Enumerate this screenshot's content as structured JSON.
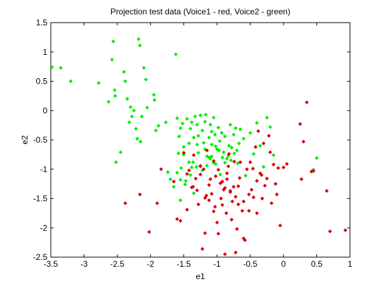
{
  "chart_data": {
    "type": "scatter",
    "title": "Projection test data (Voice1 - red, Voice2 - green)",
    "xlabel": "e1",
    "ylabel": "e2",
    "xlim": [
      -3.5,
      1
    ],
    "ylim": [
      -2.5,
      1.5
    ],
    "xticks": [
      "-3.5",
      "-3",
      "-2.5",
      "-2",
      "-1.5",
      "-1",
      "-0.5",
      "0",
      "0.5",
      "1"
    ],
    "yticks": [
      "-2.5",
      "-2",
      "-1.5",
      "-1",
      "-0.5",
      "0",
      "0.5",
      "1",
      "1.5"
    ],
    "grid": false,
    "legend": "none",
    "series": [
      {
        "color": "#00ee00",
        "x": [
          -3.48,
          -3.35,
          -3.2,
          -2.78,
          -2.63,
          -2.58,
          -2.56,
          -2.54,
          -2.53,
          -2.4,
          -2.38,
          -2.35,
          -2.32,
          -2.3,
          -2.28,
          -2.25,
          -2.22,
          -2.2,
          -2.18,
          -2.16,
          -2.13,
          -2.1,
          -2.07,
          -2.05,
          -1.95,
          -1.94,
          -1.92,
          -1.88,
          -1.77,
          -1.62,
          -1.6,
          -1.57,
          -1.55,
          -1.52,
          -1.5,
          -1.45,
          -1.42,
          -1.4,
          -1.38,
          -1.35,
          -1.33,
          -1.3,
          -1.28,
          -1.25,
          -1.22,
          -1.2,
          -1.18,
          -1.17,
          -1.15,
          -1.12,
          -1.1,
          -1.08,
          -1.05,
          -1.03,
          -1.0,
          -0.98,
          -0.96,
          -0.93,
          -0.9,
          -0.88,
          -0.85,
          -0.82,
          -0.8,
          -0.78,
          -0.75,
          -0.72,
          -0.7,
          -0.65,
          -0.6,
          -0.57,
          -0.5,
          -0.45,
          -0.4,
          -0.35,
          -0.3,
          -0.25,
          -0.2,
          -0.15,
          -1.6,
          -1.55,
          -1.5,
          -1.48,
          -1.42,
          -1.38,
          -1.35,
          -1.3,
          -1.25,
          -1.22,
          -1.18,
          -1.15,
          -1.1,
          -1.05,
          -1.02,
          -0.95,
          -0.92,
          -0.88,
          -0.83,
          -0.79,
          -0.74,
          -0.69,
          -1.74,
          -1.7,
          -1.65,
          -1.58,
          -1.54,
          -1.47,
          -1.36,
          -1.31,
          -1.28,
          -1.12,
          -1.08,
          -1.02,
          -0.97,
          0.5,
          0.45,
          -2.15,
          -2.45,
          -2.52,
          -1.55,
          -1.4,
          -1.08,
          -0.67
        ],
        "y": [
          0.74,
          0.73,
          0.5,
          0.47,
          0.15,
          0.87,
          1.18,
          0.35,
          0.25,
          0.66,
          0.5,
          0.2,
          -0.2,
          0.06,
          -0.1,
          0.0,
          -0.31,
          -0.48,
          1.22,
          1.11,
          -0.1,
          0.73,
          0.53,
          0.05,
          0.27,
          0.18,
          -0.34,
          -0.26,
          -0.2,
          0.96,
          -0.13,
          -0.44,
          -0.3,
          -0.22,
          -0.62,
          -0.14,
          -0.56,
          -0.31,
          -0.2,
          -0.46,
          -0.1,
          -0.24,
          -0.43,
          -0.08,
          -0.34,
          -0.55,
          -0.19,
          -0.07,
          -0.78,
          -0.46,
          -0.24,
          -0.58,
          -0.12,
          -0.41,
          -0.66,
          -0.29,
          -0.52,
          -0.38,
          -0.71,
          -0.44,
          -0.82,
          -0.6,
          -0.24,
          -0.63,
          -0.41,
          -0.3,
          -0.68,
          -0.32,
          -0.48,
          -1.11,
          -0.38,
          -0.74,
          -0.21,
          -0.6,
          -0.96,
          -0.12,
          -0.28,
          -0.76,
          -1.06,
          -1.18,
          -0.75,
          -1.26,
          -0.88,
          -0.97,
          -1.41,
          -0.58,
          -0.94,
          -1.02,
          -0.66,
          -0.94,
          -0.82,
          -0.89,
          -0.61,
          -1.09,
          -0.8,
          -0.89,
          -0.77,
          -0.85,
          -0.73,
          -0.9,
          -1.05,
          -1.17,
          -1.3,
          -0.73,
          -0.98,
          -1.2,
          -0.88,
          -0.96,
          -0.72,
          -0.8,
          -0.78,
          -0.91,
          -0.68,
          -0.81,
          -1.01,
          -0.53,
          -0.71,
          -0.88,
          -1.53,
          -1.1,
          -0.36,
          -0.56
        ]
      },
      {
        "color": "#dd0000",
        "x": [
          -2.38,
          -2.16,
          -2.02,
          -1.9,
          -1.84,
          -1.65,
          -1.6,
          -1.55,
          -1.5,
          -1.45,
          -1.42,
          -1.38,
          -1.35,
          -1.32,
          -1.28,
          -1.25,
          -1.22,
          -1.2,
          -1.18,
          -1.15,
          -1.12,
          -1.1,
          -1.08,
          -1.05,
          -1.03,
          -1.0,
          -0.98,
          -0.95,
          -0.92,
          -0.9,
          -0.88,
          -0.85,
          -0.82,
          -0.8,
          -0.78,
          -0.75,
          -0.72,
          -0.7,
          -0.68,
          -0.65,
          -0.62,
          -0.6,
          -0.58,
          -0.55,
          -0.52,
          -0.5,
          -0.48,
          -0.45,
          -0.42,
          -0.4,
          -0.38,
          -0.35,
          -0.32,
          -0.3,
          -0.28,
          -0.25,
          -0.22,
          -0.2,
          -0.18,
          -0.15,
          -0.12,
          -0.1,
          -0.08,
          -0.05,
          0.0,
          0.05,
          0.25,
          0.27,
          0.3,
          0.35,
          0.42,
          0.45,
          0.65,
          0.7,
          0.93,
          -1.25,
          -1.18,
          -1.12,
          -1.05,
          -0.98,
          -0.92,
          -0.88,
          -0.83,
          -0.77,
          -0.72,
          -0.66,
          -0.6,
          -0.52,
          -0.46,
          -0.4,
          -0.33,
          -1.45,
          -1.36,
          -1.3,
          -1.16,
          -1.02,
          -0.94,
          -0.86,
          -0.74,
          -0.68,
          -0.85,
          -0.8
        ],
        "y": [
          -1.58,
          -1.43,
          -2.07,
          -1.58,
          -1.0,
          -1.21,
          -1.85,
          -1.88,
          -0.72,
          -1.69,
          -1.02,
          -1.31,
          -0.76,
          -1.16,
          -1.6,
          -0.95,
          -2.36,
          -1.0,
          -1.49,
          -0.68,
          -1.53,
          -1.17,
          -1.42,
          -0.86,
          -1.64,
          -1.91,
          -1.01,
          -1.24,
          -1.61,
          -1.35,
          -2.45,
          -1.17,
          -0.74,
          -1.39,
          -1.86,
          -1.3,
          -1.47,
          -2.02,
          -1.29,
          -0.88,
          -1.71,
          -1.55,
          -2.21,
          -1.0,
          -1.71,
          -0.88,
          -1.35,
          -1.48,
          -0.62,
          -1.2,
          -0.35,
          -1.07,
          -1.5,
          -0.56,
          -1.28,
          -1.16,
          -0.43,
          -0.71,
          -1.58,
          -0.92,
          -1.25,
          -1.43,
          -0.98,
          -1.96,
          -0.97,
          -0.91,
          -0.23,
          -1.17,
          -0.53,
          0.14,
          -1.04,
          -1.03,
          -1.37,
          -2.06,
          -2.04,
          -1.09,
          -2.09,
          -1.27,
          -1.72,
          -2.1,
          -1.21,
          -1.32,
          -0.95,
          -1.55,
          -2.42,
          -1.15,
          -2.18,
          -1.43,
          -0.99,
          -1.75,
          -1.1,
          -1.08,
          -1.3,
          -1.36,
          -1.45,
          -1.12,
          -1.5,
          -1.75,
          -0.87,
          -1.6,
          -1.07,
          -1.37
        ]
      }
    ]
  }
}
